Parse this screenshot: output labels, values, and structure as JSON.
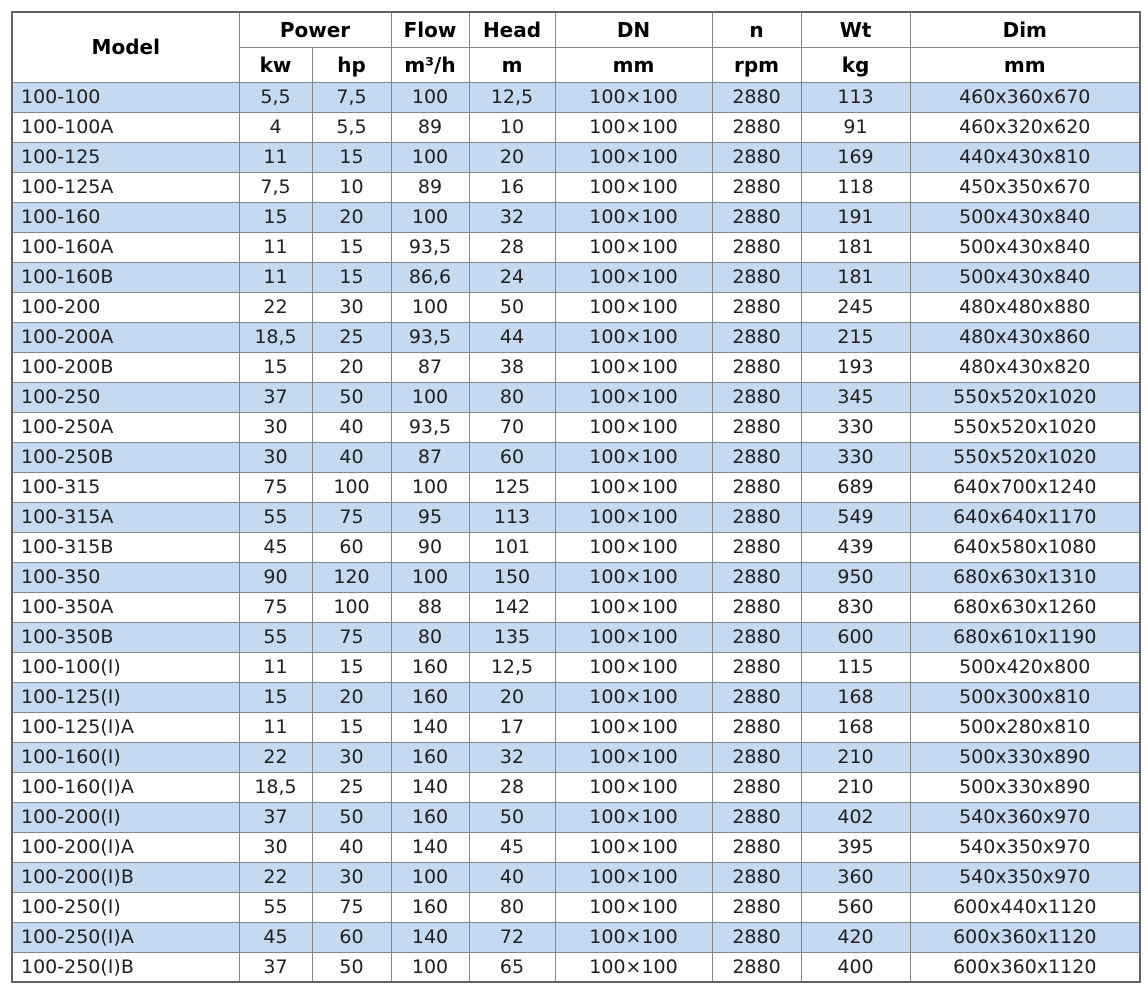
{
  "colors": {
    "row_alt": "#c5d9f1",
    "row_base": "#ffffff",
    "border_inner": "#878787",
    "border_outer": "#636363",
    "header_text": "#000000",
    "cell_text": "#1f1f1f"
  },
  "table": {
    "header": {
      "model": "Model",
      "power": "Power",
      "kw": "kw",
      "hp": "hp",
      "flow": "Flow",
      "flow_unit": "m³/h",
      "head": "Head",
      "head_unit": "m",
      "dn": "DN",
      "dn_unit": "mm",
      "n": "n",
      "n_unit": "rpm",
      "wt": "Wt",
      "wt_unit": "kg",
      "dim": "Dim",
      "dim_unit": "mm"
    },
    "columns": [
      "model",
      "power-kw",
      "power-hp",
      "flow",
      "head",
      "dn",
      "rpm",
      "wt",
      "dim"
    ],
    "rows": [
      [
        "100-100",
        "5,5",
        "7,5",
        "100",
        "12,5",
        "100×100",
        "2880",
        "113",
        "460x360x670"
      ],
      [
        "100-100A",
        "4",
        "5,5",
        "89",
        "10",
        "100×100",
        "2880",
        "91",
        "460x320x620"
      ],
      [
        "100-125",
        "11",
        "15",
        "100",
        "20",
        "100×100",
        "2880",
        "169",
        "440x430x810"
      ],
      [
        "100-125A",
        "7,5",
        "10",
        "89",
        "16",
        "100×100",
        "2880",
        "118",
        "450x350x670"
      ],
      [
        "100-160",
        "15",
        "20",
        "100",
        "32",
        "100×100",
        "2880",
        "191",
        "500x430x840"
      ],
      [
        "100-160A",
        "11",
        "15",
        "93,5",
        "28",
        "100×100",
        "2880",
        "181",
        "500x430x840"
      ],
      [
        "100-160B",
        "11",
        "15",
        "86,6",
        "24",
        "100×100",
        "2880",
        "181",
        "500x430x840"
      ],
      [
        "100-200",
        "22",
        "30",
        "100",
        "50",
        "100×100",
        "2880",
        "245",
        "480x480x880"
      ],
      [
        "100-200A",
        "18,5",
        "25",
        "93,5",
        "44",
        "100×100",
        "2880",
        "215",
        "480x430x860"
      ],
      [
        "100-200B",
        "15",
        "20",
        "87",
        "38",
        "100×100",
        "2880",
        "193",
        "480x430x820"
      ],
      [
        "100-250",
        "37",
        "50",
        "100",
        "80",
        "100×100",
        "2880",
        "345",
        "550x520x1020"
      ],
      [
        "100-250A",
        "30",
        "40",
        "93,5",
        "70",
        "100×100",
        "2880",
        "330",
        "550x520x1020"
      ],
      [
        "100-250B",
        "30",
        "40",
        "87",
        "60",
        "100×100",
        "2880",
        "330",
        "550x520x1020"
      ],
      [
        "100-315",
        "75",
        "100",
        "100",
        "125",
        "100×100",
        "2880",
        "689",
        "640x700x1240"
      ],
      [
        "100-315A",
        "55",
        "75",
        "95",
        "113",
        "100×100",
        "2880",
        "549",
        "640x640x1170"
      ],
      [
        "100-315B",
        "45",
        "60",
        "90",
        "101",
        "100×100",
        "2880",
        "439",
        "640x580x1080"
      ],
      [
        "100-350",
        "90",
        "120",
        "100",
        "150",
        "100×100",
        "2880",
        "950",
        "680x630x1310"
      ],
      [
        "100-350A",
        "75",
        "100",
        "88",
        "142",
        "100×100",
        "2880",
        "830",
        "680x630x1260"
      ],
      [
        "100-350B",
        "55",
        "75",
        "80",
        "135",
        "100×100",
        "2880",
        "600",
        "680x610x1190"
      ],
      [
        "100-100(I)",
        "11",
        "15",
        "160",
        "12,5",
        "100×100",
        "2880",
        "115",
        "500x420x800"
      ],
      [
        "100-125(I)",
        "15",
        "20",
        "160",
        "20",
        "100×100",
        "2880",
        "168",
        "500x300x810"
      ],
      [
        "100-125(I)A",
        "11",
        "15",
        "140",
        "17",
        "100×100",
        "2880",
        "168",
        "500x280x810"
      ],
      [
        "100-160(I)",
        "22",
        "30",
        "160",
        "32",
        "100×100",
        "2880",
        "210",
        "500x330x890"
      ],
      [
        "100-160(I)A",
        "18,5",
        "25",
        "140",
        "28",
        "100×100",
        "2880",
        "210",
        "500x330x890"
      ],
      [
        "100-200(I)",
        "37",
        "50",
        "160",
        "50",
        "100×100",
        "2880",
        "402",
        "540x360x970"
      ],
      [
        "100-200(I)A",
        "30",
        "40",
        "140",
        "45",
        "100×100",
        "2880",
        "395",
        "540x350x970"
      ],
      [
        "100-200(I)B",
        "22",
        "30",
        "100",
        "40",
        "100×100",
        "2880",
        "360",
        "540x350x970"
      ],
      [
        "100-250(I)",
        "55",
        "75",
        "160",
        "80",
        "100×100",
        "2880",
        "560",
        "600x440x1120"
      ],
      [
        "100-250(I)A",
        "45",
        "60",
        "140",
        "72",
        "100×100",
        "2880",
        "420",
        "600x360x1120"
      ],
      [
        "100-250(I)B",
        "37",
        "50",
        "100",
        "65",
        "100×100",
        "2880",
        "400",
        "600x360x1120"
      ]
    ]
  }
}
